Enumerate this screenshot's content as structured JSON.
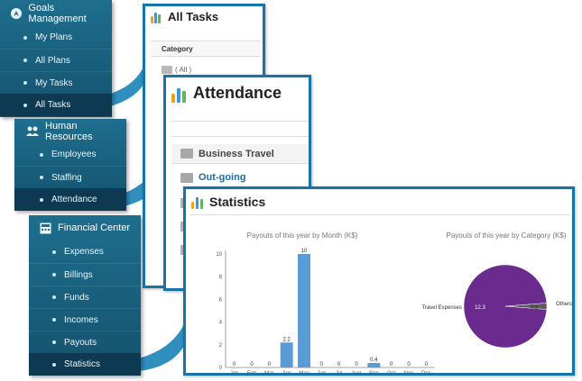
{
  "nav": {
    "goals": {
      "title": "Goals Management",
      "items": [
        {
          "label": "My Plans"
        },
        {
          "label": "All Plans"
        },
        {
          "label": "My Tasks"
        },
        {
          "label": "All Tasks",
          "active": true
        }
      ]
    },
    "hr": {
      "title": "Human Resources",
      "items": [
        {
          "label": "Employees"
        },
        {
          "label": "Staffing"
        },
        {
          "label": "Attendance",
          "active": true
        }
      ]
    },
    "finance": {
      "title": "Financial Center",
      "items": [
        {
          "label": "Expenses"
        },
        {
          "label": "Billings"
        },
        {
          "label": "Funds"
        },
        {
          "label": "Incomes"
        },
        {
          "label": "Payouts"
        },
        {
          "label": "Statistics",
          "active": true
        }
      ]
    }
  },
  "windows": {
    "alltasks": {
      "title": "All Tasks",
      "column_header": "Category",
      "first_row": "( All )"
    },
    "attendance": {
      "title": "Attendance",
      "rows": [
        {
          "label": "Business Travel"
        },
        {
          "label": "Out-going",
          "highlight": true
        }
      ]
    },
    "statistics": {
      "title": "Statistics"
    }
  },
  "colors": {
    "nav_bg": "#1e6e8e",
    "nav_active": "#0d3a52",
    "window_border": "#1574a8",
    "bar": "#5b9bd5",
    "pie_main": "#6a2a8e",
    "pie_other": "#5a5a5a",
    "highlight_text": "#1a6fa8"
  },
  "chart_data": [
    {
      "type": "bar",
      "title": "Payouts of this year by Month (K$)",
      "categories": [
        "Jan",
        "Feb",
        "Mar",
        "Apr",
        "May",
        "Jun",
        "Jul",
        "Aug",
        "Sep",
        "Oct",
        "Nov",
        "Dec"
      ],
      "values": [
        0,
        0,
        0,
        2.2,
        10,
        0,
        0,
        0,
        0.4,
        0,
        0,
        0
      ],
      "value_labels": [
        "0",
        "0",
        "0",
        "2.2",
        "10",
        "0",
        "0",
        "0",
        "0.4",
        "0",
        "0",
        "0"
      ],
      "ylim": [
        0,
        10
      ],
      "yticks": [
        0,
        2,
        4,
        6,
        8,
        10
      ],
      "grid": false
    },
    {
      "type": "pie",
      "title": "Payouts of this year by Category (K$)",
      "slices": [
        {
          "name": "Travel Expenses",
          "value": 12.3,
          "label": "12.3"
        },
        {
          "name": "Others",
          "value": 0.3,
          "label": "0.3"
        }
      ]
    }
  ]
}
